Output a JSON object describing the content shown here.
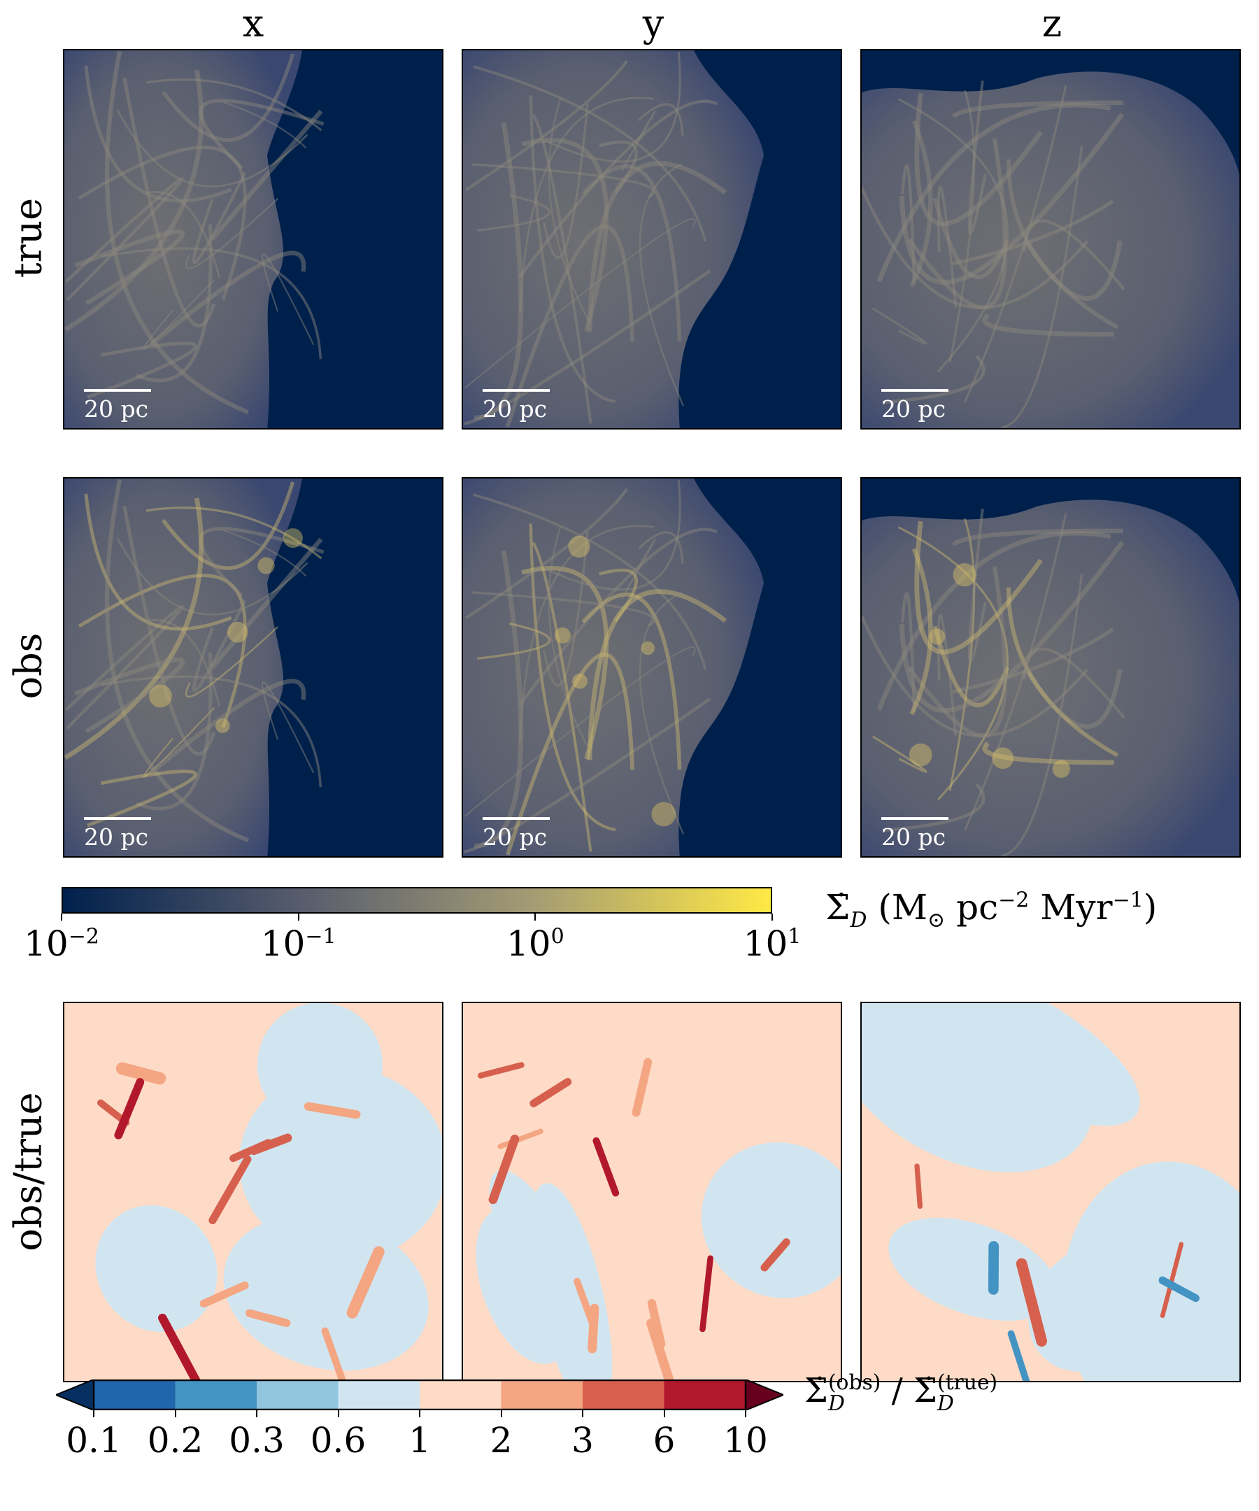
{
  "columns": [
    "x",
    "y",
    "z"
  ],
  "rows": [
    "true",
    "obs",
    "obs/true"
  ],
  "scale_bar_label": "20 pc",
  "colorbar_density": {
    "label_main": "Σ̇",
    "label_sub": "D",
    "label_unit": " (M",
    "label_sun": "⊙",
    "label_pc": " pc",
    "label_pc_exp": "−2",
    "label_myr": " Myr",
    "label_myr_exp": "−1",
    "label_close": ")",
    "scale": "log",
    "range": [
      0.01,
      10
    ],
    "ticks": [
      {
        "base": "10",
        "exp": "−2",
        "value": 0.01
      },
      {
        "base": "10",
        "exp": "−1",
        "value": 0.1
      },
      {
        "base": "10",
        "exp": "0",
        "value": 1
      },
      {
        "base": "10",
        "exp": "1",
        "value": 10
      }
    ],
    "colors": [
      "#00204c",
      "#575c6d",
      "#a59c74",
      "#ffe945"
    ]
  },
  "colorbar_ratio": {
    "label_num": "Σ̇",
    "label_num_sup": "(obs)",
    "label_num_sub": "D",
    "label_sep": " / ",
    "label_den": "Σ̇",
    "label_den_sup": "(true)",
    "label_den_sub": "D",
    "boundaries": [
      0.1,
      0.2,
      0.3,
      0.6,
      1,
      2,
      3,
      6,
      10
    ],
    "tick_labels": [
      "0.1",
      "0.2",
      "0.3",
      "0.6",
      "1",
      "2",
      "3",
      "6",
      "10"
    ],
    "bins": [
      "#2166ac",
      "#4393c3",
      "#92c5de",
      "#d1e5f0",
      "#fddbc7",
      "#f4a582",
      "#d6604d",
      "#b2182b"
    ],
    "under_color": "#053061",
    "over_color": "#67001f",
    "extend": "both"
  },
  "chart_data": {
    "type": "heatmap",
    "panels": [
      {
        "row": "true",
        "column": "x",
        "quantity": "Σ̇_D",
        "scale": "log"
      },
      {
        "row": "true",
        "column": "y",
        "quantity": "Σ̇_D",
        "scale": "log"
      },
      {
        "row": "true",
        "column": "z",
        "quantity": "Σ̇_D",
        "scale": "log"
      },
      {
        "row": "obs",
        "column": "x",
        "quantity": "Σ̇_D",
        "scale": "log"
      },
      {
        "row": "obs",
        "column": "y",
        "quantity": "Σ̇_D",
        "scale": "log"
      },
      {
        "row": "obs",
        "column": "z",
        "quantity": "Σ̇_D",
        "scale": "log"
      },
      {
        "row": "obs/true",
        "column": "x",
        "quantity": "ratio"
      },
      {
        "row": "obs/true",
        "column": "y",
        "quantity": "ratio"
      },
      {
        "row": "obs/true",
        "column": "z",
        "quantity": "ratio"
      }
    ],
    "grid": false
  }
}
